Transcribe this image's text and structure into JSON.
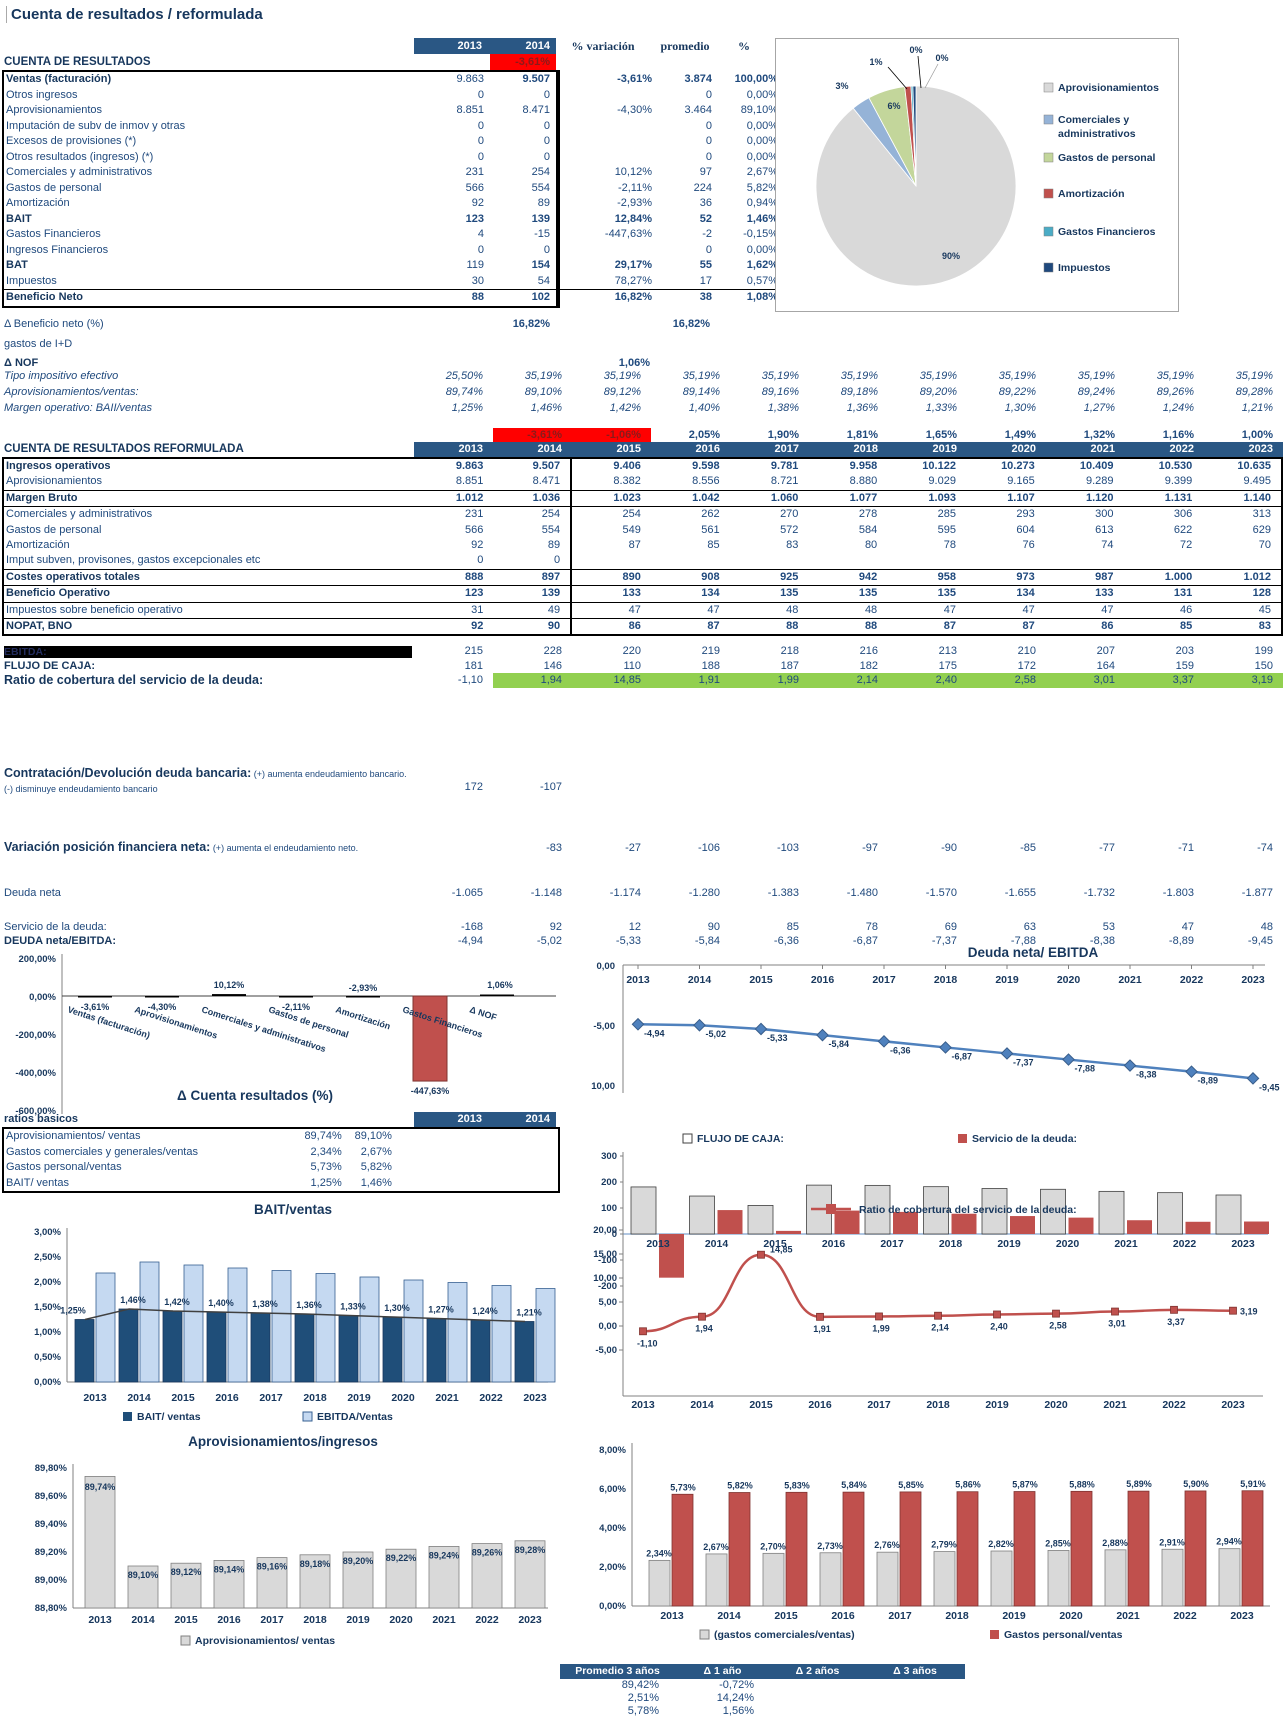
{
  "title": "Cuenta de resultados / reformulada",
  "years": [
    "2013",
    "2014",
    "2015",
    "2016",
    "2017",
    "2018",
    "2019",
    "2020",
    "2021",
    "2022",
    "2023"
  ],
  "top_table": {
    "headers": [
      "2013",
      "2014",
      "% variación",
      "promedio",
      "%"
    ],
    "section_label": "CUENTA DE RESULTADOS",
    "section_variation": "-3,61%",
    "rows": [
      [
        "Ventas (facturación)",
        "9.863",
        "9.507",
        "-3,61%",
        "3.874",
        "100,00%",
        "boldprom"
      ],
      [
        "Otros ingresos",
        "0",
        "0",
        "",
        "0",
        "0,00%",
        ""
      ],
      [
        "Aprovisionamientos",
        "8.851",
        "8.471",
        "-4,30%",
        "3.464",
        "89,10%",
        ""
      ],
      [
        "Imputación de subv de inmov y otras",
        "0",
        "0",
        "",
        "0",
        "0,00%",
        ""
      ],
      [
        "Excesos de provisiones (*)",
        "0",
        "0",
        "",
        "0",
        "0,00%",
        ""
      ],
      [
        "Otros resultados (ingresos) (*)",
        "0",
        "0",
        "",
        "0",
        "0,00%",
        ""
      ],
      [
        "Comerciales y administrativos",
        "231",
        "254",
        "10,12%",
        "97",
        "2,67%",
        ""
      ],
      [
        "Gastos de personal",
        "566",
        "554",
        "-2,11%",
        "224",
        "5,82%",
        ""
      ],
      [
        "Amortización",
        "92",
        "89",
        "-2,93%",
        "36",
        "0,94%",
        ""
      ],
      [
        "BAIT",
        "123",
        "139",
        "12,84%",
        "52",
        "1,46%",
        "bold"
      ],
      [
        "Gastos Financieros",
        "4",
        "-15",
        "-447,63%",
        "-2",
        "-0,15%",
        ""
      ],
      [
        "Ingresos Financieros",
        "0",
        "0",
        "",
        "0",
        "0,00%",
        ""
      ],
      [
        "BAT",
        "119",
        "154",
        "29,17%",
        "55",
        "1,62%",
        "boldlabel"
      ],
      [
        "Impuestos",
        "30",
        "54",
        "78,27%",
        "17",
        "0,57%",
        ""
      ],
      [
        "Beneficio Neto",
        "88",
        "102",
        "16,82%",
        "38",
        "1,08%",
        "bold bt"
      ]
    ],
    "sub_rows": [
      {
        "label": "Δ Beneficio neto (%)",
        "c2014": "16,82%",
        "promedio": "16,82%"
      },
      {
        "label": "gastos de I+D",
        "c2014": "",
        "promedio": ""
      },
      {
        "label": "Δ NOF",
        "variacion": "1,06%"
      }
    ],
    "ratio_rows": [
      [
        "Tipo impositivo efectivo",
        "25,50%",
        "35,19%",
        "35,19%",
        "35,19%",
        "35,19%",
        "35,19%",
        "35,19%",
        "35,19%",
        "35,19%",
        "35,19%",
        "35,19%"
      ],
      [
        "Aprovisionamientos/ventas:",
        "89,74%",
        "89,10%",
        "89,12%",
        "89,14%",
        "89,16%",
        "89,18%",
        "89,20%",
        "89,22%",
        "89,24%",
        "89,26%",
        "89,28%"
      ],
      [
        "Margen operativo: BAII/ventas",
        "1,25%",
        "1,46%",
        "1,42%",
        "1,40%",
        "1,38%",
        "1,36%",
        "1,33%",
        "1,30%",
        "1,27%",
        "1,24%",
        "1,21%"
      ]
    ]
  },
  "pie_legend": [
    {
      "label": "Aprovisionamientos",
      "color": "#D9D9D9"
    },
    {
      "label": "Comerciales y administrativos",
      "color": "#95B3D7"
    },
    {
      "label": "Gastos de personal",
      "color": "#C3D69B"
    },
    {
      "label": "Amortización",
      "color": "#C0504D"
    },
    {
      "label": "Gastos Financieros",
      "color": "#4BACC6"
    },
    {
      "label": "Impuestos",
      "color": "#1F497D"
    }
  ],
  "reformulada": {
    "section_label": "CUENTA DE RESULTADOS REFORMULADA",
    "growth_row": [
      "",
      "-3,61%",
      "-1,06%",
      "2,05%",
      "1,90%",
      "1,81%",
      "1,65%",
      "1,49%",
      "1,32%",
      "1,16%",
      "1,00%"
    ],
    "growth_red": [
      1,
      2
    ],
    "rows": [
      [
        "Ingresos operativos",
        "9.863",
        "9.507",
        "9.406",
        "9.598",
        "9.781",
        "9.958",
        "10.122",
        "10.273",
        "10.409",
        "10.530",
        "10.635",
        "bold"
      ],
      [
        "Aprovisionamientos",
        "8.851",
        "8.471",
        "8.382",
        "8.556",
        "8.721",
        "8.880",
        "9.029",
        "9.165",
        "9.289",
        "9.399",
        "9.495",
        ""
      ],
      [
        "Margen Bruto",
        "1.012",
        "1.036",
        "1.023",
        "1.042",
        "1.060",
        "1.077",
        "1.093",
        "1.107",
        "1.120",
        "1.131",
        "1.140",
        "bold bt bb"
      ],
      [
        "Comerciales y administrativos",
        "231",
        "254",
        "254",
        "262",
        "270",
        "278",
        "285",
        "293",
        "300",
        "306",
        "313",
        ""
      ],
      [
        "Gastos de personal",
        "566",
        "554",
        "549",
        "561",
        "572",
        "584",
        "595",
        "604",
        "613",
        "622",
        "629",
        ""
      ],
      [
        "Amortización",
        "92",
        "89",
        "87",
        "85",
        "83",
        "80",
        "78",
        "76",
        "74",
        "72",
        "70",
        ""
      ],
      [
        "Imput subven, provisones, gastos excepcionales etc",
        "0",
        "0",
        "",
        "",
        "",
        "",
        "",
        "",
        "",
        "",
        "",
        " "
      ],
      [
        "Costes operativos totales",
        "888",
        "897",
        "890",
        "908",
        "925",
        "942",
        "958",
        "973",
        "987",
        "1.000",
        "1.012",
        "bold bt"
      ],
      [
        "Beneficio Operativo",
        "123",
        "139",
        "133",
        "134",
        "135",
        "135",
        "135",
        "134",
        "133",
        "131",
        "128",
        "bold bt bb"
      ],
      [
        "Impuestos sobre beneficio operativo",
        "31",
        "49",
        "47",
        "47",
        "48",
        "48",
        "47",
        "47",
        "47",
        "46",
        "45",
        ""
      ],
      [
        "NOPAT,  BNO",
        "92",
        "90",
        "86",
        "87",
        "88",
        "88",
        "87",
        "87",
        "86",
        "85",
        "83",
        "bold bt"
      ]
    ]
  },
  "cash": {
    "ebitda_label": "EBITDA:",
    "ebitda": [
      "215",
      "228",
      "220",
      "219",
      "218",
      "216",
      "213",
      "210",
      "207",
      "203",
      "199"
    ],
    "flujo_label": "FLUJO DE CAJA:",
    "flujo": [
      "181",
      "146",
      "110",
      "188",
      "187",
      "182",
      "175",
      "172",
      "164",
      "159",
      "150"
    ],
    "ratio_label": "Ratio de cobertura del servicio de la deuda:",
    "ratio": [
      "-1,10",
      "1,94",
      "14,85",
      "1,91",
      "1,99",
      "2,14",
      "2,40",
      "2,58",
      "3,01",
      "3,37",
      "3,19"
    ],
    "contratacion_label": "Contratación/Devolución deuda bancaria:",
    "contratacion_note1": "(+) aumenta endeudamiento bancario.",
    "contratacion_note2": "(-) disminuye endeudamiento bancario",
    "contratacion_values": [
      "172",
      "-107"
    ],
    "variacion_label": "Variación posición financiera neta:",
    "variacion_note": "(+) aumenta el endeudamiento neto.",
    "variacion": [
      "",
      "-83",
      "-27",
      "-106",
      "-103",
      "-97",
      "-90",
      "-85",
      "-77",
      "-71",
      "-74"
    ],
    "deuda_neta_label": "Deuda neta",
    "deuda_neta": [
      "-1.065",
      "-1.148",
      "-1.174",
      "-1.280",
      "-1.383",
      "-1.480",
      "-1.570",
      "-1.655",
      "-1.732",
      "-1.803",
      "-1.877"
    ],
    "servicio_label": "Servicio de la deuda:",
    "servicio": [
      "-168",
      "92",
      "12",
      "90",
      "85",
      "78",
      "69",
      "63",
      "53",
      "47",
      "48"
    ],
    "deuda_ebitda_label": "DEUDA neta/EBITDA:",
    "deuda_ebitda": [
      "-4,94",
      "-5,02",
      "-5,33",
      "-5,84",
      "-6,36",
      "-6,87",
      "-7,37",
      "-7,88",
      "-8,38",
      "-8,89",
      "-9,45"
    ]
  },
  "ratios_table": {
    "section_label": "ratios basicos",
    "headers": [
      "2013",
      "2014"
    ],
    "rows": [
      [
        "Aprovisionamientos/ ventas",
        "89,74%",
        "89,10%"
      ],
      [
        "Gastos comerciales y generales/ventas",
        "2,34%",
        "2,67%"
      ],
      [
        "Gastos personal/ventas",
        "5,73%",
        "5,82%"
      ],
      [
        "BAIT/ ventas",
        "1,25%",
        "1,46%"
      ]
    ]
  },
  "summary_table": {
    "headers": [
      "Promedio 3 años",
      "Δ 1 año",
      "Δ 2 años",
      "Δ 3 años"
    ],
    "rows": [
      [
        "89,42%",
        "-0,72%",
        "",
        ""
      ],
      [
        "2,51%",
        "14,24%",
        "",
        ""
      ],
      [
        "5,78%",
        "1,56%",
        "",
        ""
      ]
    ]
  },
  "chart_data": [
    {
      "id": "pie",
      "type": "pie",
      "labels": [
        "Aprovisionamientos",
        "Comerciales y administrativos",
        "Gastos de personal",
        "Amortización",
        "Gastos Financieros",
        "Impuestos"
      ],
      "values": [
        90,
        3,
        6,
        1,
        0,
        0
      ],
      "display_labels": [
        "90%",
        "3%",
        "6%",
        "1%",
        "0%",
        "0%"
      ],
      "colors": [
        "#D9D9D9",
        "#95B3D7",
        "#C3D69B",
        "#C0504D",
        "#4BACC6",
        "#1F497D"
      ],
      "legend_position": "right"
    },
    {
      "id": "delta",
      "type": "bar",
      "title": "Δ Cuenta resultados (%)",
      "categories": [
        "Ventas (facturación)",
        "Aprovisionamientos",
        "Comerciales y administrativos",
        "Gastos de personal",
        "Amortización",
        "Gastos Financieros",
        "Δ NOF"
      ],
      "values": [
        -3.61,
        -4.3,
        10.12,
        -2.11,
        -2.93,
        -447.63,
        1.06
      ],
      "value_labels": [
        "-3,61%",
        "-4,30%",
        "10,12%",
        "-2,11%",
        "-2,93%",
        "-447,63%",
        "1,06%"
      ],
      "yticks": [
        "200,00%",
        "0,00%",
        "-200,00%",
        "-400,00%",
        "-600,00%"
      ],
      "ylim": [
        -600,
        200
      ],
      "highlight_color": "#C0504D"
    },
    {
      "id": "deuda_ebitda",
      "type": "line",
      "title": "Deuda neta/ EBITDA",
      "x": [
        "2013",
        "2014",
        "2015",
        "2016",
        "2017",
        "2018",
        "2019",
        "2020",
        "2021",
        "2022",
        "2023"
      ],
      "values": [
        -4.94,
        -5.02,
        -5.33,
        -5.84,
        -6.36,
        -6.87,
        -7.37,
        -7.88,
        -8.38,
        -8.89,
        -9.45
      ],
      "value_labels": [
        "-4,94",
        "-5,02",
        "-5,33",
        "-5,84",
        "-6,36",
        "-6,87",
        "-7,37",
        "-7,88",
        "-8,38",
        "-8,89",
        "-9,45"
      ],
      "yticks": [
        "0,00",
        "-5,00",
        "10,00"
      ],
      "ylim": [
        -10,
        0
      ],
      "color": "#4F81BD"
    },
    {
      "id": "flujo_servicio",
      "type": "bar",
      "categories": [
        "2013",
        "2014",
        "2015",
        "2016",
        "2017",
        "2018",
        "2019",
        "2020",
        "2021",
        "2022",
        "2023"
      ],
      "series": [
        {
          "name": "FLUJO DE CAJA:",
          "color": "#D9D9D9",
          "values": [
            181,
            146,
            110,
            188,
            187,
            182,
            175,
            172,
            164,
            159,
            150
          ]
        },
        {
          "name": "Servicio de la deuda:",
          "color": "#C0504D",
          "values": [
            -168,
            92,
            12,
            90,
            85,
            78,
            69,
            63,
            53,
            47,
            48
          ]
        }
      ],
      "yticks": [
        "300",
        "200",
        "100",
        "0",
        "-100",
        "-200"
      ],
      "ylim": [
        -200,
        300
      ],
      "legend_position": "top"
    },
    {
      "id": "bait_ventas",
      "type": "bar",
      "title": "BAIT/ventas",
      "categories": [
        "2013",
        "2014",
        "2015",
        "2016",
        "2017",
        "2018",
        "2019",
        "2020",
        "2021",
        "2022",
        "2023"
      ],
      "series": [
        {
          "name": "BAIT/ ventas",
          "color": "#1F4E79",
          "values": [
            1.25,
            1.46,
            1.42,
            1.4,
            1.38,
            1.36,
            1.33,
            1.3,
            1.27,
            1.24,
            1.21
          ]
        },
        {
          "name": "EBITDA/Ventas",
          "color": "#C5D9F1",
          "values": [
            2.18,
            2.4,
            2.34,
            2.28,
            2.23,
            2.17,
            2.1,
            2.04,
            1.99,
            1.93,
            1.87
          ]
        }
      ],
      "value_labels": [
        "1,25%",
        "1,46%",
        "1,42%",
        "1,40%",
        "1,38%",
        "1,36%",
        "1,33%",
        "1,30%",
        "1,27%",
        "1,24%",
        "1,21%"
      ],
      "yticks": [
        "3,00%",
        "2,50%",
        "2,00%",
        "1,50%",
        "1,00%",
        "0,50%",
        "0,00%"
      ],
      "ylim": [
        0,
        3
      ],
      "legend_position": "bottom"
    },
    {
      "id": "ratio_cobertura",
      "type": "line",
      "legend": "Ratio de cobertura del servicio de la deuda:",
      "x": [
        "2013",
        "2014",
        "2015",
        "2016",
        "2017",
        "2018",
        "2019",
        "2020",
        "2021",
        "2022",
        "2023"
      ],
      "values": [
        -1.1,
        1.94,
        14.85,
        1.91,
        1.99,
        2.14,
        2.4,
        2.58,
        3.01,
        3.37,
        3.19
      ],
      "value_labels": [
        "-1,10",
        "1,94",
        "14,85",
        "1,91",
        "1,99",
        "2,14",
        "2,40",
        "2,58",
        "3,01",
        "3,37",
        "3,19"
      ],
      "yticks": [
        "20,00",
        "15,00",
        "10,00",
        "5,00",
        "0,00",
        "-5,00"
      ],
      "ylim": [
        -5,
        20
      ],
      "color": "#C0504D"
    },
    {
      "id": "aprov_ingresos",
      "type": "bar",
      "title": "Aprovisionamientos/ingresos",
      "legend": "Aprovisionamientos/ ventas",
      "categories": [
        "2013",
        "2014",
        "2015",
        "2016",
        "2017",
        "2018",
        "2019",
        "2020",
        "2021",
        "2022",
        "2023"
      ],
      "values": [
        89.74,
        89.1,
        89.12,
        89.14,
        89.16,
        89.18,
        89.2,
        89.22,
        89.24,
        89.26,
        89.28
      ],
      "value_labels": [
        "89,74%",
        "89,10%",
        "89,12%",
        "89,14%",
        "89,16%",
        "89,18%",
        "89,20%",
        "89,22%",
        "89,24%",
        "89,26%",
        "89,28%"
      ],
      "yticks": [
        "89,80%",
        "89,60%",
        "89,40%",
        "89,20%",
        "89,00%",
        "88,80%"
      ],
      "ylim": [
        88.8,
        89.8
      ],
      "color": "#D9D9D9"
    },
    {
      "id": "gastos_ratios",
      "type": "bar",
      "categories": [
        "2013",
        "2014",
        "2015",
        "2016",
        "2017",
        "2018",
        "2019",
        "2020",
        "2021",
        "2022",
        "2023"
      ],
      "series": [
        {
          "name": "(gastos comerciales/ventas)",
          "color": "#D9D9D9",
          "values": [
            2.34,
            2.67,
            2.7,
            2.73,
            2.76,
            2.79,
            2.82,
            2.85,
            2.88,
            2.91,
            2.94
          ],
          "value_labels": [
            "2,34%",
            "2,67%",
            "2,70%",
            "2,73%",
            "2,76%",
            "2,79%",
            "2,82%",
            "2,85%",
            "2,88%",
            "2,91%",
            "2,94%"
          ]
        },
        {
          "name": "Gastos personal/ventas",
          "color": "#C0504D",
          "values": [
            5.73,
            5.82,
            5.83,
            5.84,
            5.85,
            5.86,
            5.87,
            5.88,
            5.89,
            5.9,
            5.91
          ],
          "value_labels": [
            "5,73%",
            "5,82%",
            "5,83%",
            "5,84%",
            "5,85%",
            "5,86%",
            "5,87%",
            "5,88%",
            "5,89%",
            "5,90%",
            "5,91%"
          ]
        }
      ],
      "yticks": [
        "8,00%",
        "6,00%",
        "4,00%",
        "2,00%",
        "0,00%"
      ],
      "ylim": [
        0,
        8
      ],
      "legend_position": "bottom"
    }
  ]
}
